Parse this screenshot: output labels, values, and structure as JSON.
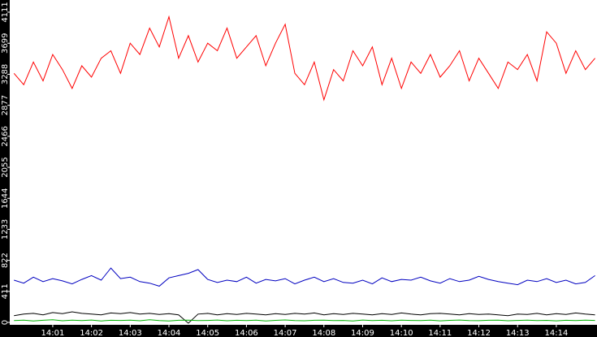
{
  "chart_data": {
    "type": "line",
    "x": [
      840,
      840.25,
      840.5,
      840.75,
      841,
      841.25,
      841.5,
      841.75,
      842,
      842.25,
      842.5,
      842.75,
      843,
      843.25,
      843.5,
      843.75,
      844,
      844.25,
      844.5,
      844.75,
      845,
      845.25,
      845.5,
      845.75,
      846,
      846.25,
      846.5,
      846.75,
      847,
      847.25,
      847.5,
      847.75,
      848,
      848.25,
      848.5,
      848.75,
      849,
      849.25,
      849.5,
      849.75,
      850,
      850.25,
      850.5,
      850.75,
      851,
      851.25,
      851.5,
      851.75,
      852,
      852.25,
      852.5,
      852.75,
      853,
      853.25,
      853.5,
      853.75,
      854,
      854.25,
      854.5,
      854.75,
      855
    ],
    "series": [
      {
        "color": "#ff0000",
        "values": [
          3300,
          3150,
          3450,
          3200,
          3550,
          3350,
          3100,
          3400,
          3250,
          3500,
          3600,
          3300,
          3700,
          3550,
          3900,
          3650,
          4050,
          3500,
          3800,
          3450,
          3700,
          3600,
          3900,
          3500,
          3650,
          3800,
          3400,
          3700,
          3950,
          3300,
          3150,
          3450,
          2950,
          3350,
          3200,
          3600,
          3400,
          3650,
          3150,
          3500,
          3100,
          3450,
          3300,
          3550,
          3250,
          3400,
          3600,
          3200,
          3500,
          3300,
          3100,
          3450,
          3350,
          3550,
          3200,
          3850,
          3700,
          3300,
          3600,
          3350,
          3500
        ]
      },
      {
        "color": "#0000c0",
        "values": [
          560,
          520,
          600,
          540,
          580,
          550,
          510,
          570,
          620,
          560,
          720,
          580,
          600,
          540,
          520,
          480,
          590,
          620,
          650,
          700,
          570,
          530,
          560,
          540,
          600,
          520,
          570,
          550,
          580,
          510,
          560,
          600,
          540,
          580,
          530,
          520,
          560,
          510,
          590,
          540,
          570,
          560,
          600,
          550,
          520,
          580,
          540,
          560,
          610,
          570,
          540,
          520,
          500,
          560,
          540,
          580,
          530,
          560,
          510,
          530,
          620
        ]
      },
      {
        "color": "#000000",
        "values": [
          90,
          110,
          120,
          100,
          130,
          115,
          140,
          120,
          110,
          100,
          125,
          115,
          130,
          110,
          120,
          105,
          115,
          100,
          -10,
          110,
          120,
          100,
          115,
          105,
          120,
          110,
          100,
          115,
          105,
          120,
          110,
          125,
          100,
          115,
          105,
          120,
          110,
          100,
          115,
          105,
          125,
          110,
          100,
          115,
          120,
          110,
          100,
          115,
          105,
          110,
          100,
          90,
          110,
          105,
          120,
          100,
          115,
          105,
          125,
          110,
          100
        ]
      },
      {
        "color": "#00b000",
        "values": [
          25,
          30,
          20,
          28,
          35,
          22,
          30,
          25,
          32,
          20,
          28,
          26,
          30,
          22,
          35,
          25,
          20,
          28,
          30,
          24,
          26,
          32,
          22,
          28,
          25,
          30,
          20,
          27,
          33,
          25,
          22,
          28,
          30,
          24,
          26,
          20,
          31,
          25,
          28,
          22,
          30,
          26,
          24,
          29,
          21,
          27,
          32,
          25,
          23,
          28,
          30,
          22,
          26,
          29,
          24,
          27,
          21,
          28,
          25,
          30,
          26
        ]
      }
    ],
    "xlim": [
      839.89,
      855.05
    ],
    "xticks": [
      {
        "value": 841,
        "label": "14:01"
      },
      {
        "value": 842,
        "label": "14:02"
      },
      {
        "value": 843,
        "label": "14:03"
      },
      {
        "value": 844,
        "label": "14:04"
      },
      {
        "value": 845,
        "label": "14:05"
      },
      {
        "value": 846,
        "label": "14:06"
      },
      {
        "value": 847,
        "label": "14:07"
      },
      {
        "value": 848,
        "label": "14:08"
      },
      {
        "value": 849,
        "label": "14:09"
      },
      {
        "value": 850,
        "label": "14:10"
      },
      {
        "value": 851,
        "label": "14:11"
      },
      {
        "value": 852,
        "label": "14:12"
      },
      {
        "value": 853,
        "label": "14:13"
      },
      {
        "value": 854,
        "label": "14:14"
      }
    ],
    "ylim": [
      -32,
      4272
    ],
    "yticks": [
      0,
      411,
      822,
      1233,
      1644,
      2055,
      2466,
      2877,
      3288,
      3699,
      4111
    ]
  }
}
